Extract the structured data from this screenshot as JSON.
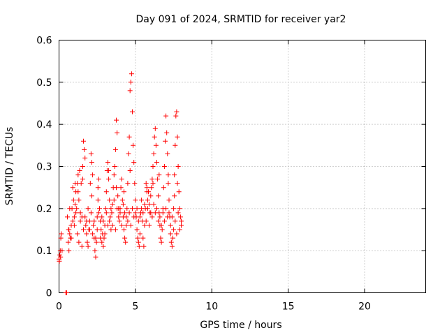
{
  "chart_data": {
    "type": "scatter",
    "title": "Day 091 of 2024, SRMTID for receiver yar2",
    "xlabel": "GPS time / hours",
    "ylabel": "SRMTID / TECUs",
    "xlim": [
      0,
      24
    ],
    "ylim": [
      0,
      0.6
    ],
    "xticks": [
      0,
      5,
      10,
      15,
      20
    ],
    "yticks": [
      0,
      0.1,
      0.2,
      0.3,
      0.4,
      0.5,
      0.6
    ],
    "xtick_labels": [
      "0",
      "5",
      "10",
      "15",
      "20"
    ],
    "ytick_labels": [
      "0",
      "0.1",
      "0.2",
      "0.3",
      "0.4",
      "0.5",
      "0.6"
    ],
    "grid": true,
    "marker": "+",
    "color": "#ff0000",
    "series": [
      {
        "name": "SRMTID",
        "points": [
          [
            0.0,
            0.08
          ],
          [
            0.02,
            0.075
          ],
          [
            0.05,
            0.09
          ],
          [
            0.08,
            0.1
          ],
          [
            0.1,
            0.085
          ],
          [
            0.12,
            0.13
          ],
          [
            0.15,
            0.14
          ],
          [
            0.2,
            0.1
          ],
          [
            0.45,
            0.0
          ],
          [
            0.5,
            0.0
          ],
          [
            0.55,
            0.18
          ],
          [
            0.6,
            0.12
          ],
          [
            0.62,
            0.15
          ],
          [
            0.65,
            0.1
          ],
          [
            0.7,
            0.14
          ],
          [
            0.75,
            0.13
          ],
          [
            0.8,
            0.16
          ],
          [
            0.85,
            0.2
          ],
          [
            0.9,
            0.25
          ],
          [
            0.95,
            0.22
          ],
          [
            1.0,
            0.18
          ],
          [
            1.05,
            0.21
          ],
          [
            1.1,
            0.24
          ],
          [
            1.15,
            0.2
          ],
          [
            1.2,
            0.26
          ],
          [
            1.25,
            0.28
          ],
          [
            1.3,
            0.22
          ],
          [
            1.35,
            0.29
          ],
          [
            1.4,
            0.19
          ],
          [
            1.45,
            0.26
          ],
          [
            1.5,
            0.18
          ],
          [
            1.55,
            0.3
          ],
          [
            1.6,
            0.36
          ],
          [
            1.65,
            0.34
          ],
          [
            1.7,
            0.32
          ],
          [
            1.75,
            0.16
          ],
          [
            1.8,
            0.14
          ],
          [
            1.85,
            0.12
          ],
          [
            1.9,
            0.11
          ],
          [
            1.95,
            0.15
          ],
          [
            2.0,
            0.17
          ],
          [
            2.05,
            0.26
          ],
          [
            2.1,
            0.33
          ],
          [
            2.15,
            0.31
          ],
          [
            2.2,
            0.28
          ],
          [
            2.25,
            0.16
          ],
          [
            2.3,
            0.13
          ],
          [
            2.35,
            0.1
          ],
          [
            2.4,
            0.085
          ],
          [
            2.45,
            0.12
          ],
          [
            2.5,
            0.18
          ],
          [
            2.55,
            0.22
          ],
          [
            2.6,
            0.27
          ],
          [
            2.65,
            0.2
          ],
          [
            2.7,
            0.17
          ],
          [
            2.75,
            0.15
          ],
          [
            2.8,
            0.12
          ],
          [
            2.85,
            0.14
          ],
          [
            2.9,
            0.11
          ],
          [
            2.95,
            0.13
          ],
          [
            3.0,
            0.16
          ],
          [
            3.05,
            0.2
          ],
          [
            3.1,
            0.24
          ],
          [
            3.15,
            0.29
          ],
          [
            3.2,
            0.31
          ],
          [
            3.25,
            0.27
          ],
          [
            3.3,
            0.22
          ],
          [
            3.35,
            0.18
          ],
          [
            3.4,
            0.15
          ],
          [
            3.45,
            0.19
          ],
          [
            3.5,
            0.21
          ],
          [
            3.55,
            0.25
          ],
          [
            3.6,
            0.28
          ],
          [
            3.65,
            0.3
          ],
          [
            3.7,
            0.34
          ],
          [
            3.75,
            0.41
          ],
          [
            3.8,
            0.38
          ],
          [
            3.85,
            0.23
          ],
          [
            3.9,
            0.2
          ],
          [
            3.95,
            0.17
          ],
          [
            4.0,
            0.19
          ],
          [
            4.05,
            0.25
          ],
          [
            4.1,
            0.27
          ],
          [
            4.15,
            0.22
          ],
          [
            4.2,
            0.18
          ],
          [
            4.25,
            0.15
          ],
          [
            4.3,
            0.13
          ],
          [
            4.35,
            0.12
          ],
          [
            4.4,
            0.16
          ],
          [
            4.45,
            0.2
          ],
          [
            4.5,
            0.26
          ],
          [
            4.55,
            0.33
          ],
          [
            4.6,
            0.37
          ],
          [
            4.65,
            0.48
          ],
          [
            4.7,
            0.5
          ],
          [
            4.75,
            0.52
          ],
          [
            4.8,
            0.43
          ],
          [
            4.85,
            0.35
          ],
          [
            4.9,
            0.31
          ],
          [
            4.95,
            0.26
          ],
          [
            5.0,
            0.22
          ],
          [
            5.05,
            0.18
          ],
          [
            5.1,
            0.15
          ],
          [
            5.15,
            0.13
          ],
          [
            5.2,
            0.12
          ],
          [
            5.25,
            0.11
          ],
          [
            5.3,
            0.14
          ],
          [
            5.35,
            0.19
          ],
          [
            5.4,
            0.22
          ],
          [
            5.45,
            0.17
          ],
          [
            5.5,
            0.13
          ],
          [
            5.55,
            0.11
          ],
          [
            5.6,
            0.16
          ],
          [
            5.65,
            0.2
          ],
          [
            5.7,
            0.26
          ],
          [
            5.75,
            0.25
          ],
          [
            5.8,
            0.22
          ],
          [
            5.85,
            0.24
          ],
          [
            5.9,
            0.21
          ],
          [
            5.95,
            0.19
          ],
          [
            6.0,
            0.23
          ],
          [
            6.05,
            0.25
          ],
          [
            6.1,
            0.27
          ],
          [
            6.15,
            0.3
          ],
          [
            6.2,
            0.33
          ],
          [
            6.25,
            0.37
          ],
          [
            6.3,
            0.39
          ],
          [
            6.35,
            0.35
          ],
          [
            6.4,
            0.31
          ],
          [
            6.45,
            0.27
          ],
          [
            6.5,
            0.23
          ],
          [
            6.55,
            0.19
          ],
          [
            6.6,
            0.16
          ],
          [
            6.65,
            0.13
          ],
          [
            6.7,
            0.12
          ],
          [
            6.75,
            0.15
          ],
          [
            6.8,
            0.2
          ],
          [
            6.85,
            0.25
          ],
          [
            6.9,
            0.3
          ],
          [
            6.95,
            0.36
          ],
          [
            7.0,
            0.42
          ],
          [
            7.05,
            0.38
          ],
          [
            7.1,
            0.33
          ],
          [
            7.15,
            0.28
          ],
          [
            7.2,
            0.22
          ],
          [
            7.25,
            0.18
          ],
          [
            7.3,
            0.14
          ],
          [
            7.35,
            0.12
          ],
          [
            7.4,
            0.11
          ],
          [
            7.45,
            0.13
          ],
          [
            7.5,
            0.2
          ],
          [
            7.55,
            0.28
          ],
          [
            7.6,
            0.35
          ],
          [
            7.65,
            0.42
          ],
          [
            7.7,
            0.43
          ],
          [
            7.75,
            0.37
          ],
          [
            7.8,
            0.3
          ],
          [
            7.85,
            0.24
          ],
          [
            7.9,
            0.2
          ],
          [
            7.95,
            0.18
          ],
          [
            8.0,
            0.17
          ],
          [
            0.65,
            0.15
          ],
          [
            0.8,
            0.13
          ],
          [
            1.0,
            0.16
          ],
          [
            1.2,
            0.14
          ],
          [
            1.4,
            0.17
          ],
          [
            1.6,
            0.15
          ],
          [
            1.8,
            0.17
          ],
          [
            2.0,
            0.15
          ],
          [
            2.2,
            0.14
          ],
          [
            2.4,
            0.13
          ],
          [
            2.6,
            0.19
          ],
          [
            2.8,
            0.18
          ],
          [
            3.0,
            0.14
          ],
          [
            3.2,
            0.16
          ],
          [
            3.4,
            0.2
          ],
          [
            3.6,
            0.22
          ],
          [
            3.8,
            0.2
          ],
          [
            4.0,
            0.2
          ],
          [
            4.2,
            0.21
          ],
          [
            4.4,
            0.18
          ],
          [
            4.6,
            0.19
          ],
          [
            4.8,
            0.2
          ],
          [
            5.0,
            0.19
          ],
          [
            5.2,
            0.17
          ],
          [
            5.4,
            0.2
          ],
          [
            5.6,
            0.21
          ],
          [
            5.8,
            0.2
          ],
          [
            6.0,
            0.19
          ],
          [
            6.2,
            0.21
          ],
          [
            6.4,
            0.2
          ],
          [
            6.6,
            0.18
          ],
          [
            6.8,
            0.19
          ],
          [
            7.0,
            0.2
          ],
          [
            7.2,
            0.19
          ],
          [
            7.4,
            0.18
          ],
          [
            7.6,
            0.17
          ],
          [
            7.8,
            0.19
          ],
          [
            8.0,
            0.16
          ],
          [
            0.9,
            0.17
          ],
          [
            1.1,
            0.19
          ],
          [
            1.3,
            0.12
          ],
          [
            1.5,
            0.11
          ],
          [
            1.7,
            0.18
          ],
          [
            1.9,
            0.2
          ],
          [
            2.1,
            0.19
          ],
          [
            2.3,
            0.17
          ],
          [
            2.5,
            0.15
          ],
          [
            2.7,
            0.13
          ],
          [
            2.9,
            0.17
          ],
          [
            3.1,
            0.19
          ],
          [
            3.3,
            0.17
          ],
          [
            3.5,
            0.16
          ],
          [
            3.7,
            0.15
          ],
          [
            3.9,
            0.18
          ],
          [
            4.1,
            0.16
          ],
          [
            4.3,
            0.19
          ],
          [
            4.5,
            0.17
          ],
          [
            4.7,
            0.16
          ],
          [
            4.9,
            0.18
          ],
          [
            5.1,
            0.2
          ],
          [
            5.3,
            0.18
          ],
          [
            5.5,
            0.19
          ],
          [
            5.7,
            0.17
          ],
          [
            5.9,
            0.16
          ],
          [
            6.1,
            0.18
          ],
          [
            6.3,
            0.19
          ],
          [
            6.5,
            0.17
          ],
          [
            6.7,
            0.16
          ],
          [
            6.9,
            0.17
          ],
          [
            7.1,
            0.18
          ],
          [
            7.3,
            0.16
          ],
          [
            7.5,
            0.15
          ],
          [
            7.7,
            0.14
          ],
          [
            7.9,
            0.15
          ],
          [
            0.7,
            0.2
          ],
          [
            1.05,
            0.26
          ],
          [
            1.25,
            0.24
          ],
          [
            1.55,
            0.27
          ],
          [
            2.15,
            0.23
          ],
          [
            2.55,
            0.25
          ],
          [
            3.25,
            0.29
          ],
          [
            3.75,
            0.25
          ],
          [
            4.25,
            0.24
          ],
          [
            4.65,
            0.29
          ],
          [
            5.75,
            0.24
          ],
          [
            6.15,
            0.26
          ],
          [
            6.55,
            0.28
          ],
          [
            7.15,
            0.26
          ],
          [
            7.55,
            0.23
          ],
          [
            7.75,
            0.26
          ]
        ]
      }
    ]
  }
}
